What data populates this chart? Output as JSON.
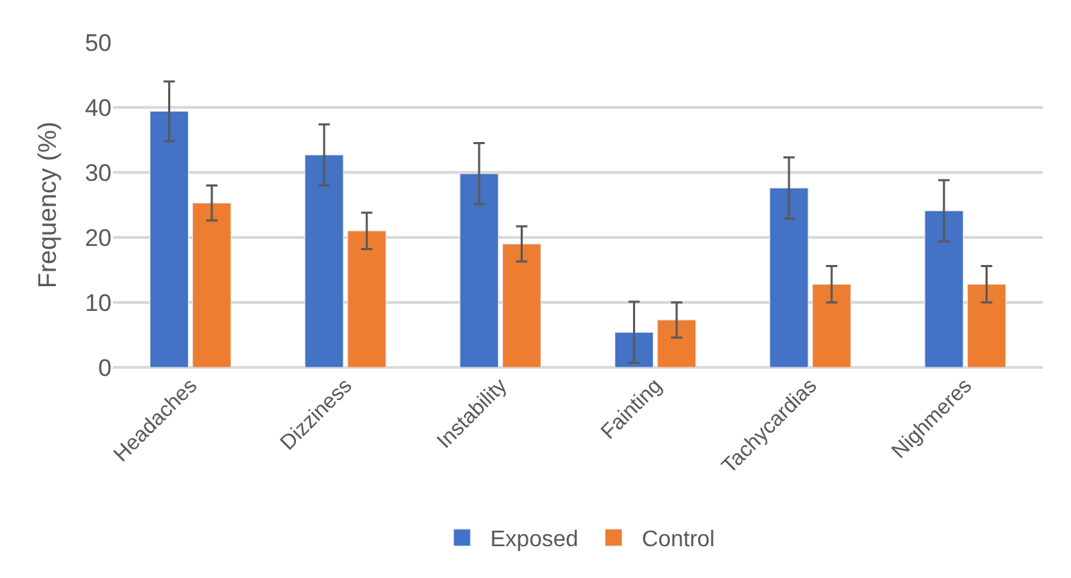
{
  "chart_data": {
    "type": "bar",
    "ylabel": "Frequency (%)",
    "categories": [
      "Headaches",
      "Dizziness",
      "Instability",
      "Fainting",
      "Tachycardias",
      "Nighmeres"
    ],
    "series": [
      {
        "name": "Exposed",
        "color": "#4472c4",
        "values": [
          39.4,
          32.7,
          29.8,
          5.4,
          27.6,
          24.1
        ],
        "errors": [
          4.6,
          4.7,
          4.7,
          4.7,
          4.7,
          4.7
        ]
      },
      {
        "name": "Control",
        "color": "#ed7d31",
        "values": [
          25.3,
          21,
          19,
          7.3,
          12.8,
          12.8
        ],
        "errors": [
          2.7,
          2.8,
          2.7,
          2.7,
          2.8,
          2.8
        ]
      }
    ],
    "ylim": [
      0,
      50
    ],
    "yticks": [
      0,
      10,
      20,
      30,
      40,
      50
    ],
    "grid": "y",
    "legend": "bottom"
  }
}
